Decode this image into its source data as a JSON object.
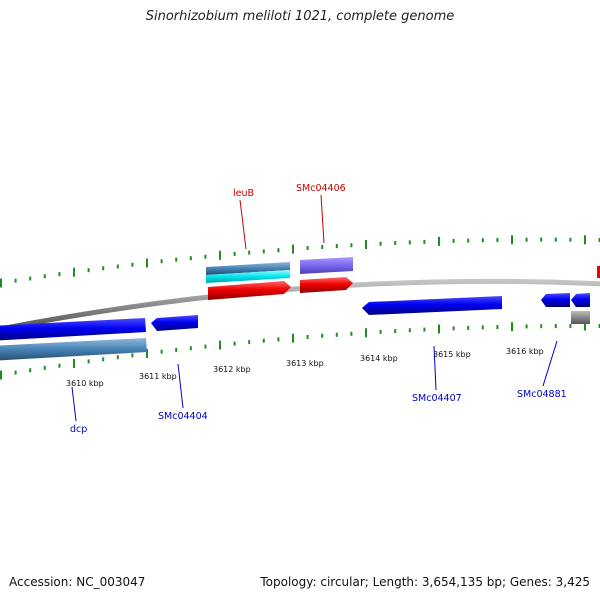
{
  "title": "Sinorhizobium meliloti 1021, complete genome",
  "footer": {
    "accession": "Accession: NC_003047",
    "summary": "Topology: circular; Length: 3,654,135 bp; Genes: 3,425"
  },
  "scale_labels": [
    "3610 kbp",
    "3611 kbp",
    "3612 kbp",
    "3613 kbp",
    "3614 kbp",
    "3615 kbp",
    "3616 kbp"
  ],
  "genes": [
    {
      "name": "dcp",
      "strand": "-",
      "color": "#0000cc"
    },
    {
      "name": "SMc04404",
      "strand": "-",
      "color": "#0000cc"
    },
    {
      "name": "leuB",
      "strand": "+",
      "color": "#cc0000"
    },
    {
      "name": "SMc04406",
      "strand": "+",
      "color": "#cc0000"
    },
    {
      "name": "SMc04407",
      "strand": "-",
      "color": "#0000cc"
    },
    {
      "name": "SMc04881",
      "strand": "-",
      "color": "#0000cc"
    }
  ],
  "colors": {
    "forward_gene": "#ff0000",
    "reverse_gene": "#0000ff",
    "cds_feature": "#4682b4",
    "rna_feature": "#00e5ee",
    "other_feature": "#7b68ee",
    "backbone": "#8a8a8a",
    "tick": "#228b22"
  }
}
